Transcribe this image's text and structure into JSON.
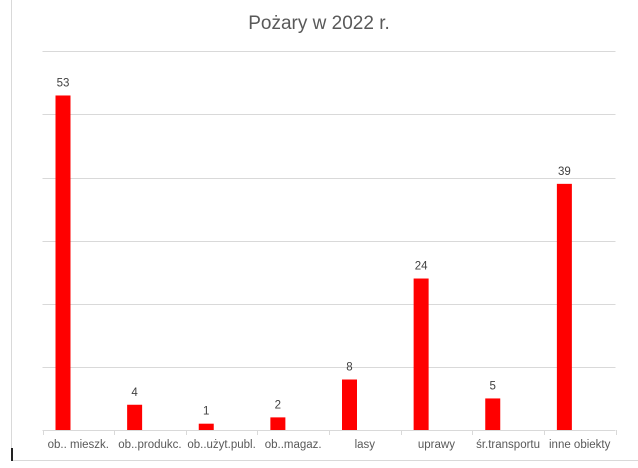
{
  "chart_data": {
    "type": "bar",
    "title": "Pożary w 2022 r.",
    "categories": [
      "ob.. mieszk.",
      "ob..produkc.",
      "ob..użyt.publ.",
      "ob..magaz.",
      "lasy",
      "uprawy",
      "śr.transportu",
      "inne obiekty"
    ],
    "values": [
      53,
      4,
      1,
      2,
      8,
      24,
      5,
      39
    ],
    "xlabel": "",
    "ylabel": "",
    "ylim": [
      0,
      60
    ],
    "ytick_step": 10,
    "grid": true,
    "data_labels": true,
    "bar_color": "#ff0000"
  }
}
